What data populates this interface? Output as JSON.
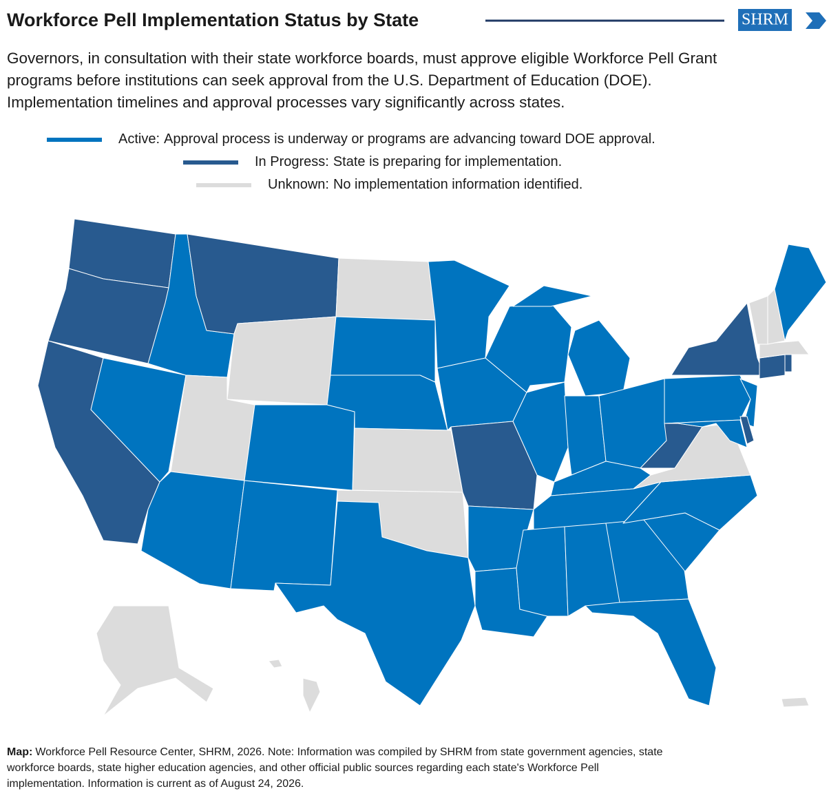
{
  "header": {
    "title": "Workforce Pell Implementation Status by State",
    "logo": "SHRM",
    "subtitle": [
      "Governors, in consultation with their state workforce boards, must approve eligible Workforce Pell Grant",
      "programs before institutions can seek approval from the U.S. Department of Education (DOE).",
      "Implementation timelines and approval processes vary significantly across states."
    ]
  },
  "legend": [
    {
      "label": "Active:",
      "description": "Approval process is underway or programs are advancing toward DOE approval.",
      "color": "#0074bf"
    },
    {
      "label": "In Progress:",
      "description": "State is preparing for implementation.",
      "color": "#285a8f"
    },
    {
      "label": "Unknown:",
      "description": "No implementation information identified.",
      "color": "#dcdcdc"
    }
  ],
  "map": {
    "regions": [
      "In Progress:",
      "In Progress:",
      "In Progress:",
      "Active:",
      "Active:",
      "In Progress:",
      "Unknown:",
      "Unknown:",
      "Active:",
      "Active:",
      "Active:",
      "Unknown:",
      "Active:",
      "Active:",
      "Unknown:",
      "Unknown:",
      "Active:",
      "Active:",
      "Active:",
      "In Progress:",
      "Active:",
      "Active:",
      "Active:",
      "Active:",
      "Active:",
      "Active:",
      "Active:",
      "Active:",
      "Active:",
      "Active:",
      "Active:",
      "Active:",
      "Active:",
      "Active:",
      "Active:",
      "Unknown:",
      "In Progress:",
      "Active:",
      "In Progress:",
      "Active:",
      "Active:",
      "In Progress:",
      "In Progress:",
      "In Progress:",
      "Unknown:",
      "Unknown:",
      "Unknown:",
      "Active:",
      "Unknown:",
      "Unknown:",
      "Unknown:"
    ]
  },
  "footnote": {
    "label": "Map:",
    "lines": [
      "Workforce Pell Resource Center, SHRM, 2026. Note: Information was compiled by SHRM from state government agencies, state",
      "workforce boards, state higher education agencies, and other official public sources regarding each state's Workforce Pell",
      "implementation. Information is current as of August 24, 2026."
    ]
  }
}
